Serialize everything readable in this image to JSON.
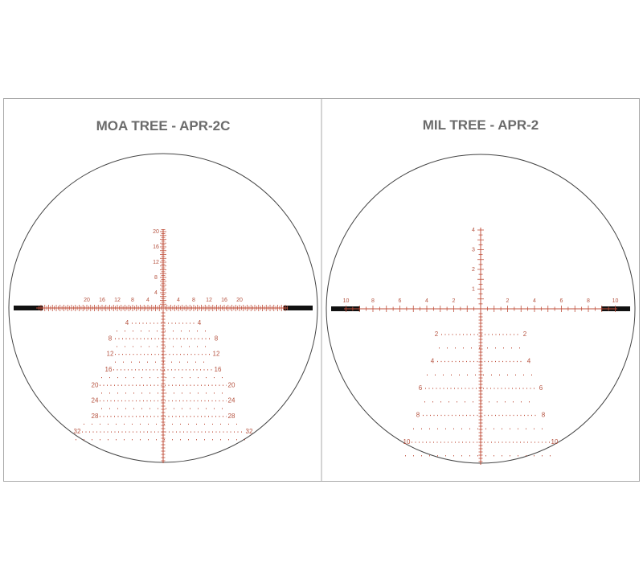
{
  "panels": [
    {
      "title": "MOA TREE - APR-2C",
      "vertical_labels": [
        "4",
        "8",
        "12",
        "16",
        "20"
      ],
      "horizontal_left": [
        "4",
        "8",
        "12",
        "16",
        "20"
      ],
      "horizontal_right": [
        "4",
        "8",
        "12",
        "16",
        "20"
      ],
      "tree_labels": [
        "4",
        "8",
        "12",
        "16",
        "20",
        "24",
        "28",
        "32"
      ]
    },
    {
      "title": "MIL TREE - APR-2",
      "vertical_labels": [
        "1",
        "2",
        "3",
        "4"
      ],
      "horizontal_left": [
        "2",
        "4",
        "6",
        "8",
        "10"
      ],
      "horizontal_right": [
        "2",
        "4",
        "6",
        "8",
        "10"
      ],
      "tree_labels": [
        "2",
        "4",
        "6",
        "8",
        "10"
      ]
    }
  ]
}
